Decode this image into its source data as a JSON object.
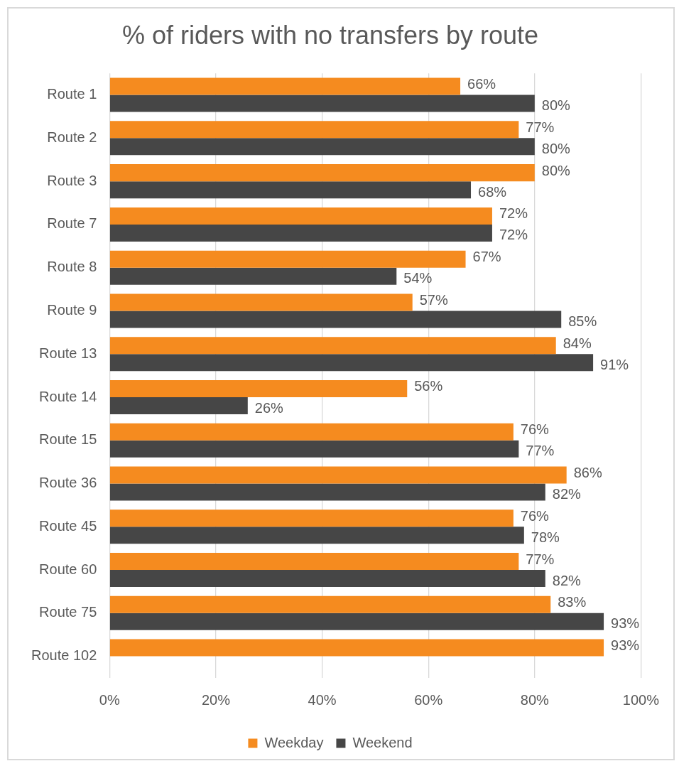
{
  "chart_data": {
    "type": "bar",
    "orientation": "horizontal",
    "title": "% of riders with no transfers by route",
    "categories": [
      "Route 1",
      "Route 2",
      "Route 3",
      "Route 7",
      "Route 8",
      "Route 9",
      "Route 13",
      "Route 14",
      "Route 15",
      "Route 36",
      "Route 45",
      "Route 60",
      "Route 75",
      "Route 102"
    ],
    "series": [
      {
        "name": "Weekday",
        "color": "#f58b1f",
        "values": [
          66,
          77,
          80,
          72,
          67,
          57,
          84,
          56,
          76,
          86,
          76,
          77,
          83,
          93
        ],
        "value_labels": [
          "66%",
          "77%",
          "80%",
          "72%",
          "67%",
          "57%",
          "84%",
          "56%",
          "76%",
          "86%",
          "76%",
          "77%",
          "83%",
          "93%"
        ]
      },
      {
        "name": "Weekend",
        "color": "#464646",
        "values": [
          80,
          80,
          68,
          72,
          54,
          85,
          91,
          26,
          77,
          82,
          78,
          82,
          93,
          null
        ],
        "value_labels": [
          "80%",
          "80%",
          "68%",
          "72%",
          "54%",
          "85%",
          "91%",
          "26%",
          "77%",
          "82%",
          "78%",
          "82%",
          "93%",
          null
        ]
      }
    ],
    "xlim": [
      0,
      100
    ],
    "xticks": [
      {
        "value": 0,
        "label": "0%"
      },
      {
        "value": 20,
        "label": "20%"
      },
      {
        "value": 40,
        "label": "40%"
      },
      {
        "value": 60,
        "label": "60%"
      },
      {
        "value": 80,
        "label": "80%"
      },
      {
        "value": 100,
        "label": "100%"
      }
    ],
    "grid": "x",
    "legend": "bottom"
  }
}
